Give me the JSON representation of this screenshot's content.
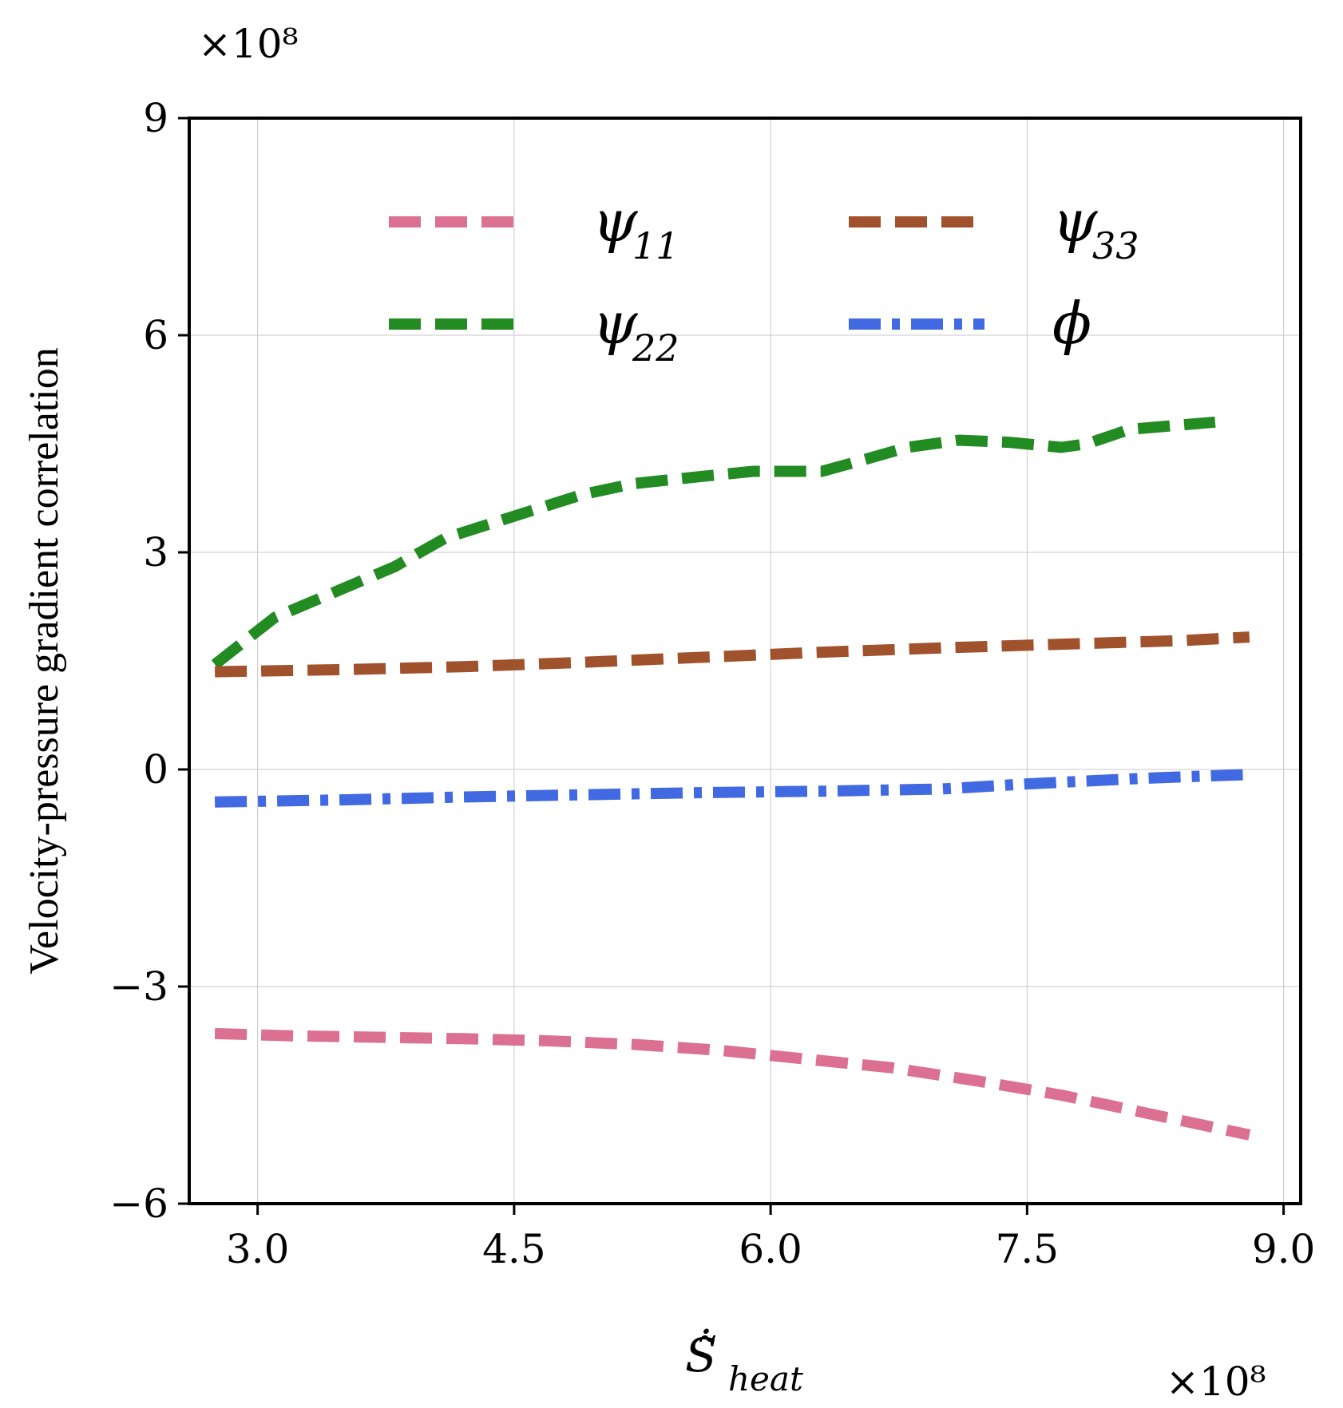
{
  "chart_data": {
    "type": "line",
    "title": "",
    "xlabel": "Ṡ̃",
    "xlabel_subscript": "heat",
    "ylabel": "Velocity-pressure gradient correlation",
    "x_multiplier": "×10⁸",
    "y_multiplier": "×10⁸",
    "xlim": [
      2.6,
      9.1
    ],
    "ylim": [
      -6,
      9
    ],
    "xticks": [
      3.0,
      4.5,
      6.0,
      7.5,
      9.0
    ],
    "xtick_labels": [
      "3.0",
      "4.5",
      "6.0",
      "7.5",
      "9.0"
    ],
    "yticks": [
      -6,
      -3,
      0,
      3,
      6,
      9
    ],
    "ytick_labels": [
      "−6",
      "−3",
      "0",
      "3",
      "6",
      "9"
    ],
    "grid": true,
    "legend_position": "top",
    "series": [
      {
        "name": "ψ",
        "subscript": "11",
        "color": "#DB7093",
        "style": "dashed",
        "x": [
          2.75,
          3.2,
          3.7,
          4.2,
          4.7,
          5.2,
          5.7,
          6.2,
          6.7,
          7.2,
          7.7,
          8.2,
          8.8
        ],
        "y": [
          -3.65,
          -3.68,
          -3.7,
          -3.72,
          -3.75,
          -3.8,
          -3.88,
          -4.0,
          -4.12,
          -4.3,
          -4.5,
          -4.75,
          -5.05
        ]
      },
      {
        "name": "ψ",
        "subscript": "22",
        "color": "#228B22",
        "style": "dashed",
        "x": [
          2.75,
          3.1,
          3.5,
          3.8,
          4.1,
          4.5,
          4.9,
          5.2,
          5.6,
          5.9,
          6.1,
          6.3,
          6.5,
          6.8,
          7.1,
          7.4,
          7.7,
          7.85,
          8.1,
          8.6
        ],
        "y": [
          1.45,
          2.1,
          2.5,
          2.8,
          3.2,
          3.5,
          3.8,
          3.95,
          4.05,
          4.12,
          4.12,
          4.12,
          4.25,
          4.45,
          4.55,
          4.52,
          4.45,
          4.5,
          4.7,
          4.8
        ]
      },
      {
        "name": "ψ",
        "subscript": "33",
        "color": "#A0522D",
        "style": "dashed",
        "x": [
          2.75,
          3.5,
          4.2,
          4.9,
          5.6,
          6.3,
          7.0,
          7.7,
          8.4,
          8.8
        ],
        "y": [
          1.35,
          1.38,
          1.42,
          1.48,
          1.55,
          1.62,
          1.68,
          1.73,
          1.78,
          1.83
        ]
      },
      {
        "name": "ϕ",
        "subscript": "",
        "color": "#4169E1",
        "style": "dashdot",
        "x": [
          2.75,
          3.5,
          4.2,
          4.9,
          5.6,
          6.3,
          7.0,
          7.5,
          8.2,
          8.8
        ],
        "y": [
          -0.45,
          -0.42,
          -0.38,
          -0.35,
          -0.32,
          -0.3,
          -0.27,
          -0.2,
          -0.12,
          -0.07
        ]
      }
    ]
  }
}
